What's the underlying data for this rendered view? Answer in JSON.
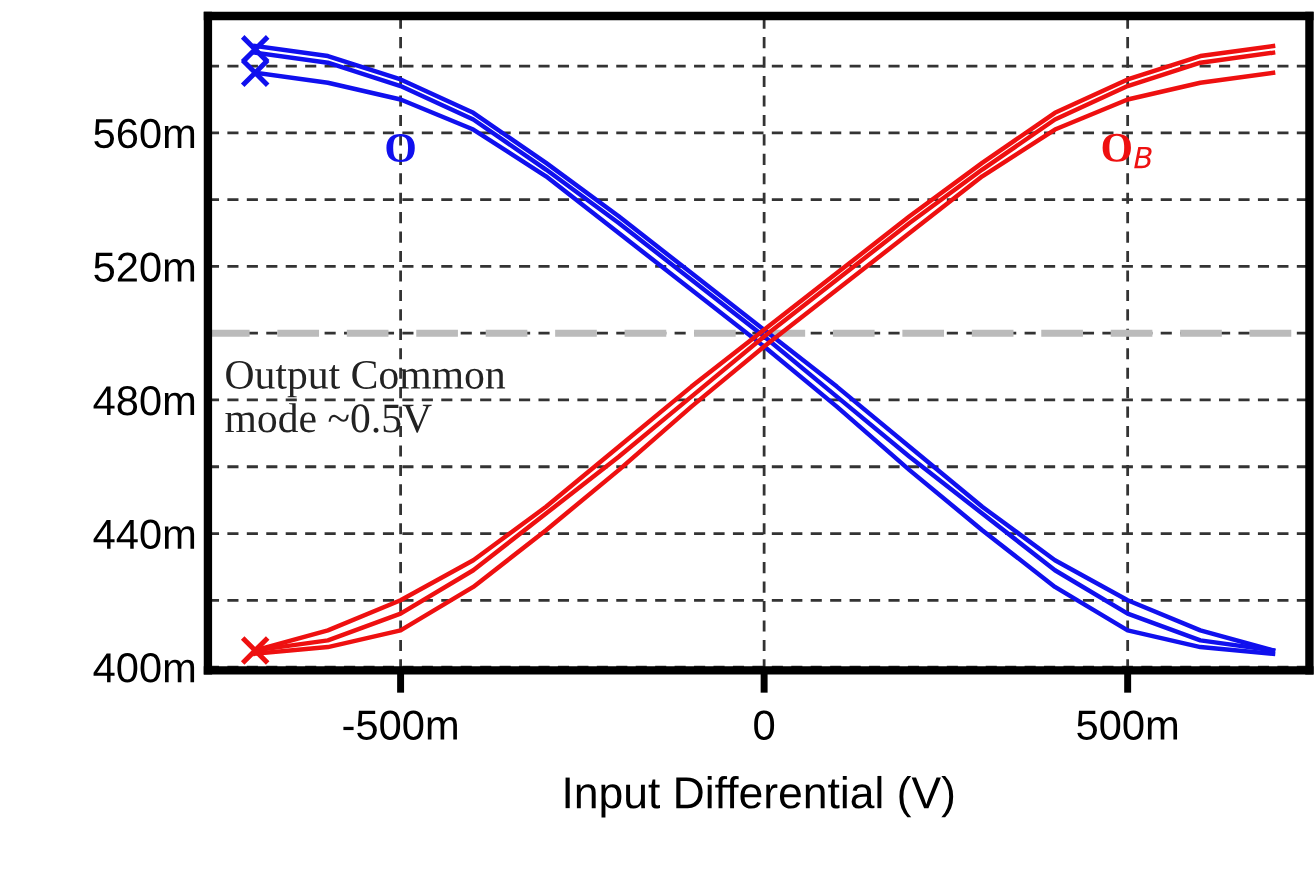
{
  "chart_data": {
    "type": "line",
    "xlabel": "Input Differential (V)",
    "x": [
      -700,
      -600,
      -500,
      -400,
      -300,
      -200,
      -100,
      0,
      100,
      200,
      300,
      400,
      500,
      600,
      700
    ],
    "series": [
      {
        "name": "O",
        "color": "#1010ee",
        "values": [
          586,
          583,
          576,
          566,
          551,
          535,
          518,
          501,
          484,
          466,
          448,
          432,
          420,
          411,
          405
        ]
      },
      {
        "color": "#1010ee",
        "values": [
          584,
          581,
          574,
          564,
          549,
          533,
          516,
          499,
          481,
          463,
          446,
          429,
          416,
          408,
          405
        ]
      },
      {
        "color": "#1010ee",
        "values": [
          578,
          575,
          570,
          561,
          547,
          530,
          513,
          496,
          478,
          459,
          441,
          424,
          411,
          406,
          404
        ]
      },
      {
        "name": "O$_{B}$",
        "color": "#ee1010",
        "values": [
          405,
          411,
          420,
          432,
          448,
          466,
          484,
          501,
          518,
          535,
          551,
          566,
          576,
          583,
          586
        ]
      },
      {
        "color": "#ee1010",
        "values": [
          405,
          408,
          416,
          429,
          446,
          463,
          481,
          499,
          516,
          533,
          549,
          564,
          574,
          581,
          584
        ]
      },
      {
        "color": "#ee1010",
        "values": [
          404,
          406,
          411,
          424,
          441,
          459,
          478,
          496,
          513,
          530,
          547,
          561,
          570,
          575,
          578
        ]
      },
      {
        "type": "scatter",
        "marker": "cross",
        "color": "#1010ee",
        "values": [
          585,
          null,
          null,
          null,
          null,
          null,
          null,
          null,
          null,
          null,
          null,
          null,
          null,
          null,
          null
        ]
      },
      {
        "type": "scatter",
        "marker": "cross",
        "color": "#1010ee",
        "values": [
          578,
          null,
          null,
          null,
          null,
          null,
          null,
          null,
          null,
          null,
          null,
          null,
          null,
          null,
          null
        ]
      },
      {
        "type": "scatter",
        "marker": "cross",
        "color": "#ee1010",
        "values": [
          405,
          null,
          null,
          null,
          null,
          null,
          null,
          null,
          null,
          null,
          null,
          null,
          null,
          null,
          null
        ]
      }
    ],
    "xlim": [
      -765,
      750
    ],
    "ylim": [
      399,
      595
    ],
    "xticks": [
      {
        "value": -500,
        "label": "-500m"
      },
      0,
      {
        "value": 500,
        "label": "500m"
      }
    ],
    "yticks": [
      {
        "value": 400,
        "label": "400m"
      },
      {
        "value": 420,
        "label": null
      },
      {
        "value": 440,
        "label": "440m"
      },
      {
        "value": 460,
        "label": null
      },
      {
        "value": 480,
        "label": "480m"
      },
      {
        "value": 500,
        "label": null
      },
      {
        "value": 520,
        "label": "520m"
      },
      {
        "value": 540,
        "label": null
      },
      {
        "value": 560,
        "label": "560m"
      },
      {
        "value": 580,
        "label": null
      }
    ],
    "grid": true,
    "legend": false,
    "ref_lines": [
      {
        "axis": "y",
        "value": 500,
        "color": "#bbbbbb",
        "line_style": "dashed"
      }
    ],
    "annotations": [
      "Output Common\nmode ~0.5V"
    ]
  }
}
